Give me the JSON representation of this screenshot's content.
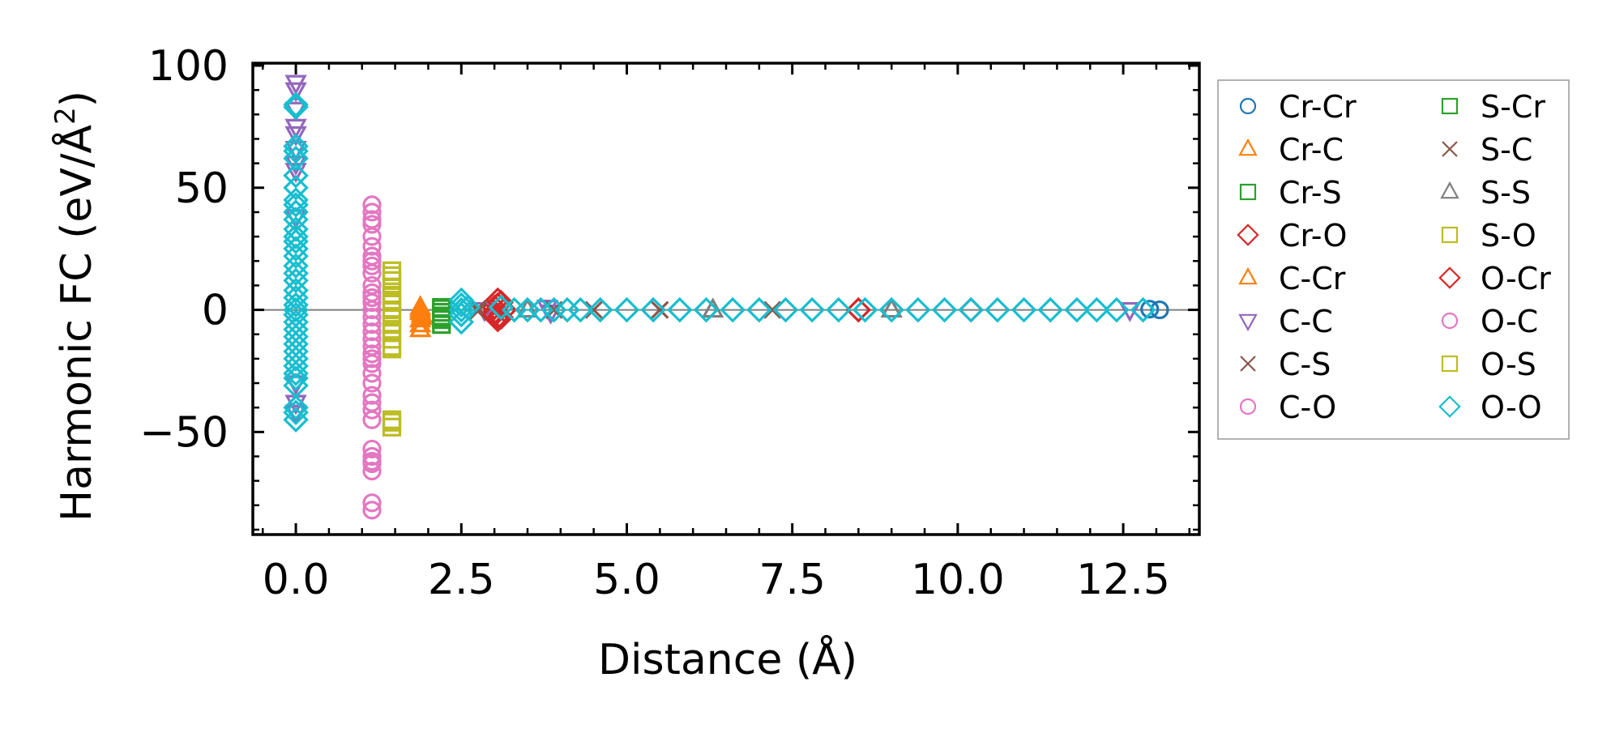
{
  "chart_data": {
    "type": "scatter",
    "title": "",
    "xlabel": "Distance (Å)",
    "ylabel": "Harmonic FC (eV/Å²)",
    "ylabel_main": "Harmonic FC (eV/Å",
    "ylabel_sup": "2",
    "ylabel_close": ")",
    "xlim": [
      -0.65,
      13.65
    ],
    "ylim": [
      -92,
      101
    ],
    "xticks": [
      0.0,
      2.5,
      5.0,
      7.5,
      10.0,
      12.5
    ],
    "xtick_labels": [
      "0.0",
      "2.5",
      "5.0",
      "7.5",
      "10.0",
      "12.5"
    ],
    "yticks": [
      -50,
      0,
      50,
      100
    ],
    "ytick_labels": [
      "−50",
      "0",
      "50",
      "100"
    ],
    "zero_line": true,
    "grid": false,
    "legend_position": "outside-right",
    "series": [
      {
        "name": "Cr-Cr",
        "marker": "circle",
        "color": "#1f77b4",
        "points": [
          [
            13.05,
            0
          ],
          [
            12.9,
            0.3
          ]
        ]
      },
      {
        "name": "Cr-C",
        "marker": "triangle-up",
        "color": "#ff7f0e",
        "points": [
          [
            1.88,
            -1
          ],
          [
            1.88,
            -4
          ],
          [
            1.88,
            -8
          ],
          [
            1.88,
            1
          ],
          [
            1.9,
            -3
          ]
        ]
      },
      {
        "name": "Cr-S",
        "marker": "square",
        "color": "#2ca02c",
        "points": [
          [
            2.2,
            -1
          ],
          [
            2.2,
            0.5
          ],
          [
            2.2,
            -2.5
          ],
          [
            2.2,
            -4
          ],
          [
            2.2,
            -6
          ]
        ]
      },
      {
        "name": "Cr-O",
        "marker": "diamond",
        "color": "#d62728",
        "points": [
          [
            3.0,
            1
          ],
          [
            3.0,
            -1
          ],
          [
            3.05,
            2
          ],
          [
            3.05,
            -3
          ],
          [
            3.1,
            3
          ],
          [
            3.1,
            -3
          ],
          [
            3.15,
            0
          ]
        ]
      },
      {
        "name": "C-Cr",
        "marker": "triangle-up",
        "color": "#ff7f0e",
        "points": [
          [
            1.88,
            0
          ],
          [
            1.88,
            -6
          ],
          [
            1.9,
            -2
          ]
        ]
      },
      {
        "name": "C-C",
        "marker": "triangle-down",
        "color": "#9467bd",
        "points": [
          [
            0,
            93
          ],
          [
            0,
            90
          ],
          [
            0,
            82
          ],
          [
            0,
            75
          ],
          [
            0,
            72
          ],
          [
            0,
            66
          ],
          [
            0,
            60
          ],
          [
            0,
            57
          ],
          [
            0,
            38
          ],
          [
            0,
            -30
          ],
          [
            0,
            -38
          ],
          [
            0,
            -42
          ],
          [
            2.85,
            0
          ],
          [
            3.8,
            1
          ],
          [
            3.85,
            -1
          ],
          [
            12.6,
            0
          ]
        ]
      },
      {
        "name": "C-S",
        "marker": "x",
        "color": "#8c564b",
        "points": [
          [
            2.75,
            0.5
          ],
          [
            3.9,
            0
          ],
          [
            5.5,
            0
          ],
          [
            7.2,
            0
          ]
        ]
      },
      {
        "name": "C-O",
        "marker": "circle",
        "color": "#e377c2",
        "points": [
          [
            1.15,
            43
          ],
          [
            1.15,
            40
          ],
          [
            1.15,
            37
          ],
          [
            1.15,
            30
          ],
          [
            1.15,
            26
          ],
          [
            1.15,
            22
          ],
          [
            1.15,
            18
          ],
          [
            1.15,
            15
          ],
          [
            1.15,
            10
          ],
          [
            1.15,
            7
          ],
          [
            1.15,
            3
          ],
          [
            1.15,
            0
          ],
          [
            1.15,
            -3
          ],
          [
            1.15,
            -6
          ],
          [
            1.15,
            -9
          ],
          [
            1.15,
            -12
          ],
          [
            1.15,
            -15
          ],
          [
            1.15,
            -18
          ],
          [
            1.15,
            -22
          ],
          [
            1.15,
            -26
          ],
          [
            1.15,
            -30
          ],
          [
            1.15,
            -35
          ],
          [
            1.15,
            -38
          ],
          [
            1.15,
            -41
          ],
          [
            1.15,
            -57
          ],
          [
            1.15,
            -60
          ],
          [
            1.15,
            -63
          ],
          [
            1.15,
            -66
          ],
          [
            1.15,
            -79
          ],
          [
            1.15,
            -82
          ]
        ]
      },
      {
        "name": "S-Cr",
        "marker": "square",
        "color": "#2ca02c",
        "points": [
          [
            2.2,
            -3
          ],
          [
            2.2,
            1
          ]
        ]
      },
      {
        "name": "S-C",
        "marker": "x",
        "color": "#8c564b",
        "points": [
          [
            2.75,
            -0.5
          ],
          [
            4.5,
            0
          ]
        ]
      },
      {
        "name": "S-S",
        "marker": "triangle-up",
        "color": "#7f7f7f",
        "points": [
          [
            3.5,
            0
          ],
          [
            6.3,
            0
          ],
          [
            9.0,
            0
          ]
        ]
      },
      {
        "name": "S-O",
        "marker": "square",
        "color": "#bcbd22",
        "points": [
          [
            1.45,
            16
          ],
          [
            1.45,
            12
          ],
          [
            1.45,
            9
          ],
          [
            1.45,
            6
          ],
          [
            1.45,
            3
          ],
          [
            1.45,
            0
          ],
          [
            1.45,
            -3
          ],
          [
            1.45,
            -6
          ],
          [
            1.45,
            -9
          ],
          [
            1.45,
            -12
          ],
          [
            1.45,
            -15
          ],
          [
            1.45,
            -45
          ],
          [
            1.45,
            -48
          ]
        ]
      },
      {
        "name": "O-Cr",
        "marker": "diamond",
        "color": "#d62728",
        "points": [
          [
            3.05,
            4
          ],
          [
            3.05,
            -4
          ],
          [
            3.0,
            -2
          ],
          [
            8.5,
            0
          ],
          [
            10.2,
            0
          ]
        ]
      },
      {
        "name": "O-C",
        "marker": "circle",
        "color": "#e377c2",
        "points": [
          [
            1.15,
            35
          ],
          [
            1.15,
            20
          ],
          [
            1.15,
            5
          ],
          [
            1.15,
            -20
          ],
          [
            1.15,
            -45
          ],
          [
            1.15,
            -62
          ]
        ]
      },
      {
        "name": "O-S",
        "marker": "square",
        "color": "#bcbd22",
        "points": [
          [
            1.45,
            14
          ],
          [
            1.45,
            4
          ],
          [
            1.45,
            -8
          ],
          [
            1.45,
            -16
          ],
          [
            1.45,
            -46
          ]
        ]
      },
      {
        "name": "O-O",
        "marker": "diamond",
        "color": "#17becf",
        "points": [
          [
            0,
            84
          ],
          [
            0,
            83
          ],
          [
            0,
            67
          ],
          [
            0,
            65
          ],
          [
            0,
            62
          ],
          [
            0,
            55
          ],
          [
            0,
            50
          ],
          [
            0,
            45
          ],
          [
            0,
            43
          ],
          [
            0,
            40
          ],
          [
            0,
            37
          ],
          [
            0,
            33
          ],
          [
            0,
            30
          ],
          [
            0,
            28
          ],
          [
            0,
            25
          ],
          [
            0,
            22
          ],
          [
            0,
            18
          ],
          [
            0,
            15
          ],
          [
            0,
            12
          ],
          [
            0,
            8
          ],
          [
            0,
            5
          ],
          [
            0,
            2
          ],
          [
            0,
            0
          ],
          [
            0,
            -2
          ],
          [
            0,
            -5
          ],
          [
            0,
            -8
          ],
          [
            0,
            -11
          ],
          [
            0,
            -14
          ],
          [
            0,
            -17
          ],
          [
            0,
            -20
          ],
          [
            0,
            -23
          ],
          [
            0,
            -26
          ],
          [
            0,
            -28
          ],
          [
            0,
            -31
          ],
          [
            0,
            -40
          ],
          [
            0,
            -42
          ],
          [
            0,
            -45
          ],
          [
            2.5,
            4
          ],
          [
            2.5,
            2
          ],
          [
            2.5,
            0
          ],
          [
            2.5,
            -2
          ],
          [
            2.5,
            -5
          ],
          [
            2.6,
            1
          ],
          [
            3.1,
            1
          ],
          [
            3.3,
            0
          ],
          [
            3.5,
            0
          ],
          [
            3.7,
            0
          ],
          [
            3.9,
            0
          ],
          [
            4.1,
            0
          ],
          [
            4.3,
            0
          ],
          [
            4.6,
            0
          ],
          [
            5.0,
            0
          ],
          [
            5.4,
            0
          ],
          [
            5.8,
            0
          ],
          [
            6.2,
            0
          ],
          [
            6.6,
            0
          ],
          [
            7.0,
            0
          ],
          [
            7.4,
            0
          ],
          [
            7.8,
            0
          ],
          [
            8.2,
            0
          ],
          [
            8.6,
            0
          ],
          [
            9.0,
            0
          ],
          [
            9.4,
            0
          ],
          [
            9.8,
            0
          ],
          [
            10.2,
            0
          ],
          [
            10.6,
            0
          ],
          [
            11.0,
            0
          ],
          [
            11.4,
            0
          ],
          [
            11.8,
            0
          ],
          [
            12.1,
            0
          ],
          [
            12.4,
            0
          ],
          [
            12.8,
            0
          ]
        ]
      }
    ],
    "legend_columns": [
      [
        "Cr-Cr",
        "Cr-C",
        "Cr-S",
        "Cr-O",
        "C-Cr",
        "C-C",
        "C-S",
        "C-O"
      ],
      [
        "S-Cr",
        "S-C",
        "S-S",
        "S-O",
        "O-Cr",
        "O-C",
        "O-S",
        "O-O"
      ]
    ]
  }
}
